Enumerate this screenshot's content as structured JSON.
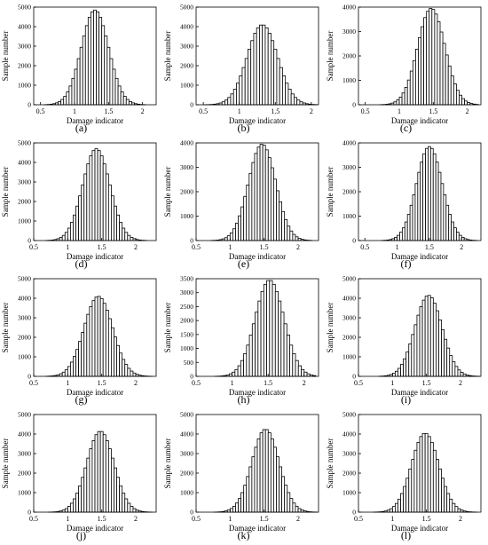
{
  "common": {
    "xlabel": "Damage indicator",
    "ylabel": "Sample number"
  },
  "chart_data": [
    {
      "type": "bar",
      "label": "(a)",
      "xlabel": "Damage indicator",
      "ylabel": "Sample number",
      "xlim": [
        0.4,
        2.2
      ],
      "ylim": [
        0,
        5000
      ],
      "xticks": [
        0.5,
        1,
        1.5,
        2
      ],
      "yticks": [
        0,
        1000,
        2000,
        3000,
        4000,
        5000
      ],
      "bin_width": 0.04,
      "mu": 1.3,
      "sigma": 0.2,
      "peak": 4850
    },
    {
      "type": "bar",
      "label": "(b)",
      "xlabel": "Damage indicator",
      "ylabel": "Sample number",
      "xlim": [
        0.4,
        2.1
      ],
      "ylim": [
        0,
        5000
      ],
      "xticks": [
        0.5,
        1,
        1.5,
        2
      ],
      "yticks": [
        0,
        1000,
        2000,
        3000,
        4000,
        5000
      ],
      "bin_width": 0.04,
      "mu": 1.32,
      "sigma": 0.21,
      "peak": 4100
    },
    {
      "type": "bar",
      "label": "(c)",
      "xlabel": "Damage indicator",
      "ylabel": "Sample number",
      "xlim": [
        0.4,
        2.2
      ],
      "ylim": [
        0,
        4000
      ],
      "xticks": [
        0.5,
        1,
        1.5,
        2
      ],
      "yticks": [
        0,
        1000,
        2000,
        3000,
        4000
      ],
      "bin_width": 0.04,
      "mu": 1.47,
      "sigma": 0.2,
      "peak": 3950
    },
    {
      "type": "bar",
      "label": "(d)",
      "xlabel": "Damage indicator",
      "ylabel": "Sample number",
      "xlim": [
        0.5,
        2.3
      ],
      "ylim": [
        0,
        5000
      ],
      "xticks": [
        0.5,
        1,
        1.5,
        2
      ],
      "yticks": [
        0,
        1000,
        2000,
        3000,
        4000,
        5000
      ],
      "bin_width": 0.04,
      "mu": 1.42,
      "sigma": 0.2,
      "peak": 4700
    },
    {
      "type": "bar",
      "label": "(e)",
      "xlabel": "Damage indicator",
      "ylabel": "Sample number",
      "xlim": [
        0.5,
        2.3
      ],
      "ylim": [
        0,
        4000
      ],
      "xticks": [
        0.5,
        1,
        1.5,
        2
      ],
      "yticks": [
        0,
        1000,
        2000,
        3000,
        4000
      ],
      "bin_width": 0.04,
      "mu": 1.47,
      "sigma": 0.2,
      "peak": 3950
    },
    {
      "type": "bar",
      "label": "(f)",
      "xlabel": "Damage indicator",
      "ylabel": "Sample number",
      "xlim": [
        0.4,
        2.3
      ],
      "ylim": [
        0,
        4000
      ],
      "xticks": [
        0.5,
        1,
        1.5,
        2
      ],
      "yticks": [
        0,
        1000,
        2000,
        3000,
        4000
      ],
      "bin_width": 0.04,
      "mu": 1.5,
      "sigma": 0.2,
      "peak": 3850
    },
    {
      "type": "bar",
      "label": "(g)",
      "xlabel": "Damage indicator",
      "ylabel": "Sample number",
      "xlim": [
        0.5,
        2.3
      ],
      "ylim": [
        0,
        5000
      ],
      "xticks": [
        0.5,
        1,
        1.5,
        2
      ],
      "yticks": [
        0,
        1000,
        2000,
        3000,
        4000,
        5000
      ],
      "bin_width": 0.04,
      "mu": 1.45,
      "sigma": 0.21,
      "peak": 4100
    },
    {
      "type": "bar",
      "label": "(h)",
      "xlabel": "Damage indicator",
      "ylabel": "Sample number",
      "xlim": [
        0.5,
        2.2
      ],
      "ylim": [
        0,
        3500
      ],
      "xticks": [
        0.5,
        1,
        1.5,
        2
      ],
      "yticks": [
        0,
        500,
        1000,
        1500,
        2000,
        2500,
        3000,
        3500
      ],
      "bin_width": 0.04,
      "mu": 1.52,
      "sigma": 0.2,
      "peak": 3450
    },
    {
      "type": "bar",
      "label": "(i)",
      "xlabel": "Damage indicator",
      "ylabel": "Sample number",
      "xlim": [
        0.5,
        2.3
      ],
      "ylim": [
        0,
        5000
      ],
      "xticks": [
        0.5,
        1,
        1.5,
        2
      ],
      "yticks": [
        0,
        1000,
        2000,
        3000,
        4000,
        5000
      ],
      "bin_width": 0.04,
      "mu": 1.53,
      "sigma": 0.2,
      "peak": 4150
    },
    {
      "type": "bar",
      "label": "(j)",
      "xlabel": "Damage indicator",
      "ylabel": "Sample number",
      "xlim": [
        0.5,
        2.3
      ],
      "ylim": [
        0,
        5000
      ],
      "xticks": [
        0.5,
        1,
        1.5,
        2
      ],
      "yticks": [
        0,
        1000,
        2000,
        3000,
        4000,
        5000
      ],
      "bin_width": 0.04,
      "mu": 1.48,
      "sigma": 0.2,
      "peak": 4150
    },
    {
      "type": "bar",
      "label": "(k)",
      "xlabel": "Damage indicator",
      "ylabel": "Sample number",
      "xlim": [
        0.5,
        2.3
      ],
      "ylim": [
        0,
        5000
      ],
      "xticks": [
        0.5,
        1,
        1.5,
        2
      ],
      "yticks": [
        0,
        1000,
        2000,
        3000,
        4000,
        5000
      ],
      "bin_width": 0.04,
      "mu": 1.52,
      "sigma": 0.2,
      "peak": 4250
    },
    {
      "type": "bar",
      "label": "(l)",
      "xlabel": "Damage indicator",
      "ylabel": "Sample number",
      "xlim": [
        0.5,
        2.3
      ],
      "ylim": [
        0,
        5000
      ],
      "xticks": [
        0.5,
        1,
        1.5,
        2
      ],
      "yticks": [
        0,
        1000,
        2000,
        3000,
        4000,
        5000
      ],
      "bin_width": 0.04,
      "mu": 1.48,
      "sigma": 0.2,
      "peak": 4050
    }
  ]
}
